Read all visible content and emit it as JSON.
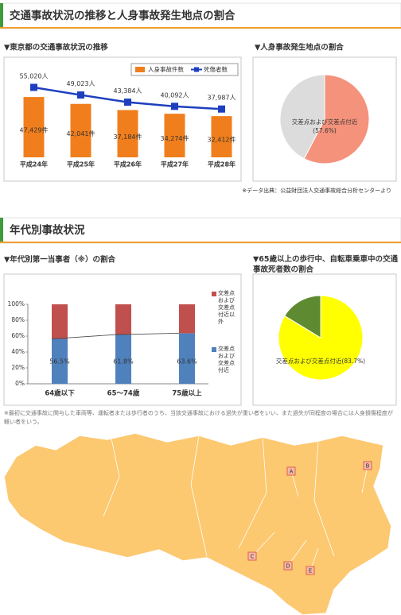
{
  "header": {
    "title": "交通事故状況の推移と人身事故発生地点の割合"
  },
  "section2": {
    "title": "年代別事故状況"
  },
  "source_note": "※データ出典：公益財団法人交通事故総合分析センターより",
  "footnote": "※最初に交通事故に関与した車両等、運転者または歩行者のうち、当該交通事故における過失が重い者をいい、また過失が同程度の場合には人身損傷程度が軽い者をいう。",
  "map": {
    "markers": [
      "A",
      "B",
      "C",
      "D",
      "E"
    ]
  },
  "chart_data": [
    {
      "type": "bar_line",
      "title": "▼東京都の交通事故状況の推移",
      "categories": [
        "平成24年",
        "平成25年",
        "平成26年",
        "平成27年",
        "平成28年"
      ],
      "series": [
        {
          "name": "人身事故件数",
          "type": "bar",
          "color": "#f07e1c",
          "values": [
            47429,
            42041,
            37184,
            34274,
            32412
          ],
          "value_labels": [
            "47,429件",
            "42,041件",
            "37,184件",
            "34,274件",
            "32,412件"
          ]
        },
        {
          "name": "死傷者数",
          "type": "line",
          "color": "#1d3fbf",
          "values": [
            55020,
            49023,
            43384,
            40092,
            37987
          ],
          "value_labels": [
            "55,020人",
            "49,023人",
            "43,384人",
            "40,092人",
            "37,987人"
          ]
        }
      ]
    },
    {
      "type": "pie",
      "title": "▼人身事故発生地点の割合",
      "categories": [
        "交差点および交差点付近",
        null
      ],
      "values": [
        57.6,
        42.4
      ],
      "value_labels": [
        "(57.6%)",
        null
      ],
      "colors": [
        "#f4927c",
        "#dcdcdc"
      ]
    },
    {
      "type": "stacked_bar",
      "title": "▼年代別第一当事者（※）の割合",
      "categories": [
        "64歳以下",
        "65〜74歳",
        "75歳以上"
      ],
      "ylim": [
        0,
        100
      ],
      "yticks": [
        {
          "value": 0,
          "label": "0%"
        },
        {
          "value": 20,
          "label": "20%"
        },
        {
          "value": 40,
          "label": "40%"
        },
        {
          "value": 60,
          "label": "60%"
        },
        {
          "value": 80,
          "label": "80%"
        },
        {
          "value": 100,
          "label": "100%"
        }
      ],
      "series": [
        {
          "name": "交差点および交差点付近",
          "color": "#4f81bd",
          "values": [
            56.5,
            61.8,
            63.6
          ],
          "value_labels": [
            "56.5%",
            "61.8%",
            "63.6%"
          ]
        },
        {
          "name": "交差点および交差点付近以外",
          "color": "#c0504d",
          "values": [
            43.5,
            38.2,
            36.4
          ]
        }
      ]
    },
    {
      "type": "pie",
      "title": "▼65歳以上の歩行中、自転車乗車中の交通事故死者数の割合",
      "categories": [
        "交差点および交差点付近",
        null
      ],
      "values": [
        83.7,
        16.3
      ],
      "value_labels": [
        "(83.7%)",
        null
      ],
      "colors": [
        "#ffff00",
        "#5e8a32"
      ]
    }
  ]
}
